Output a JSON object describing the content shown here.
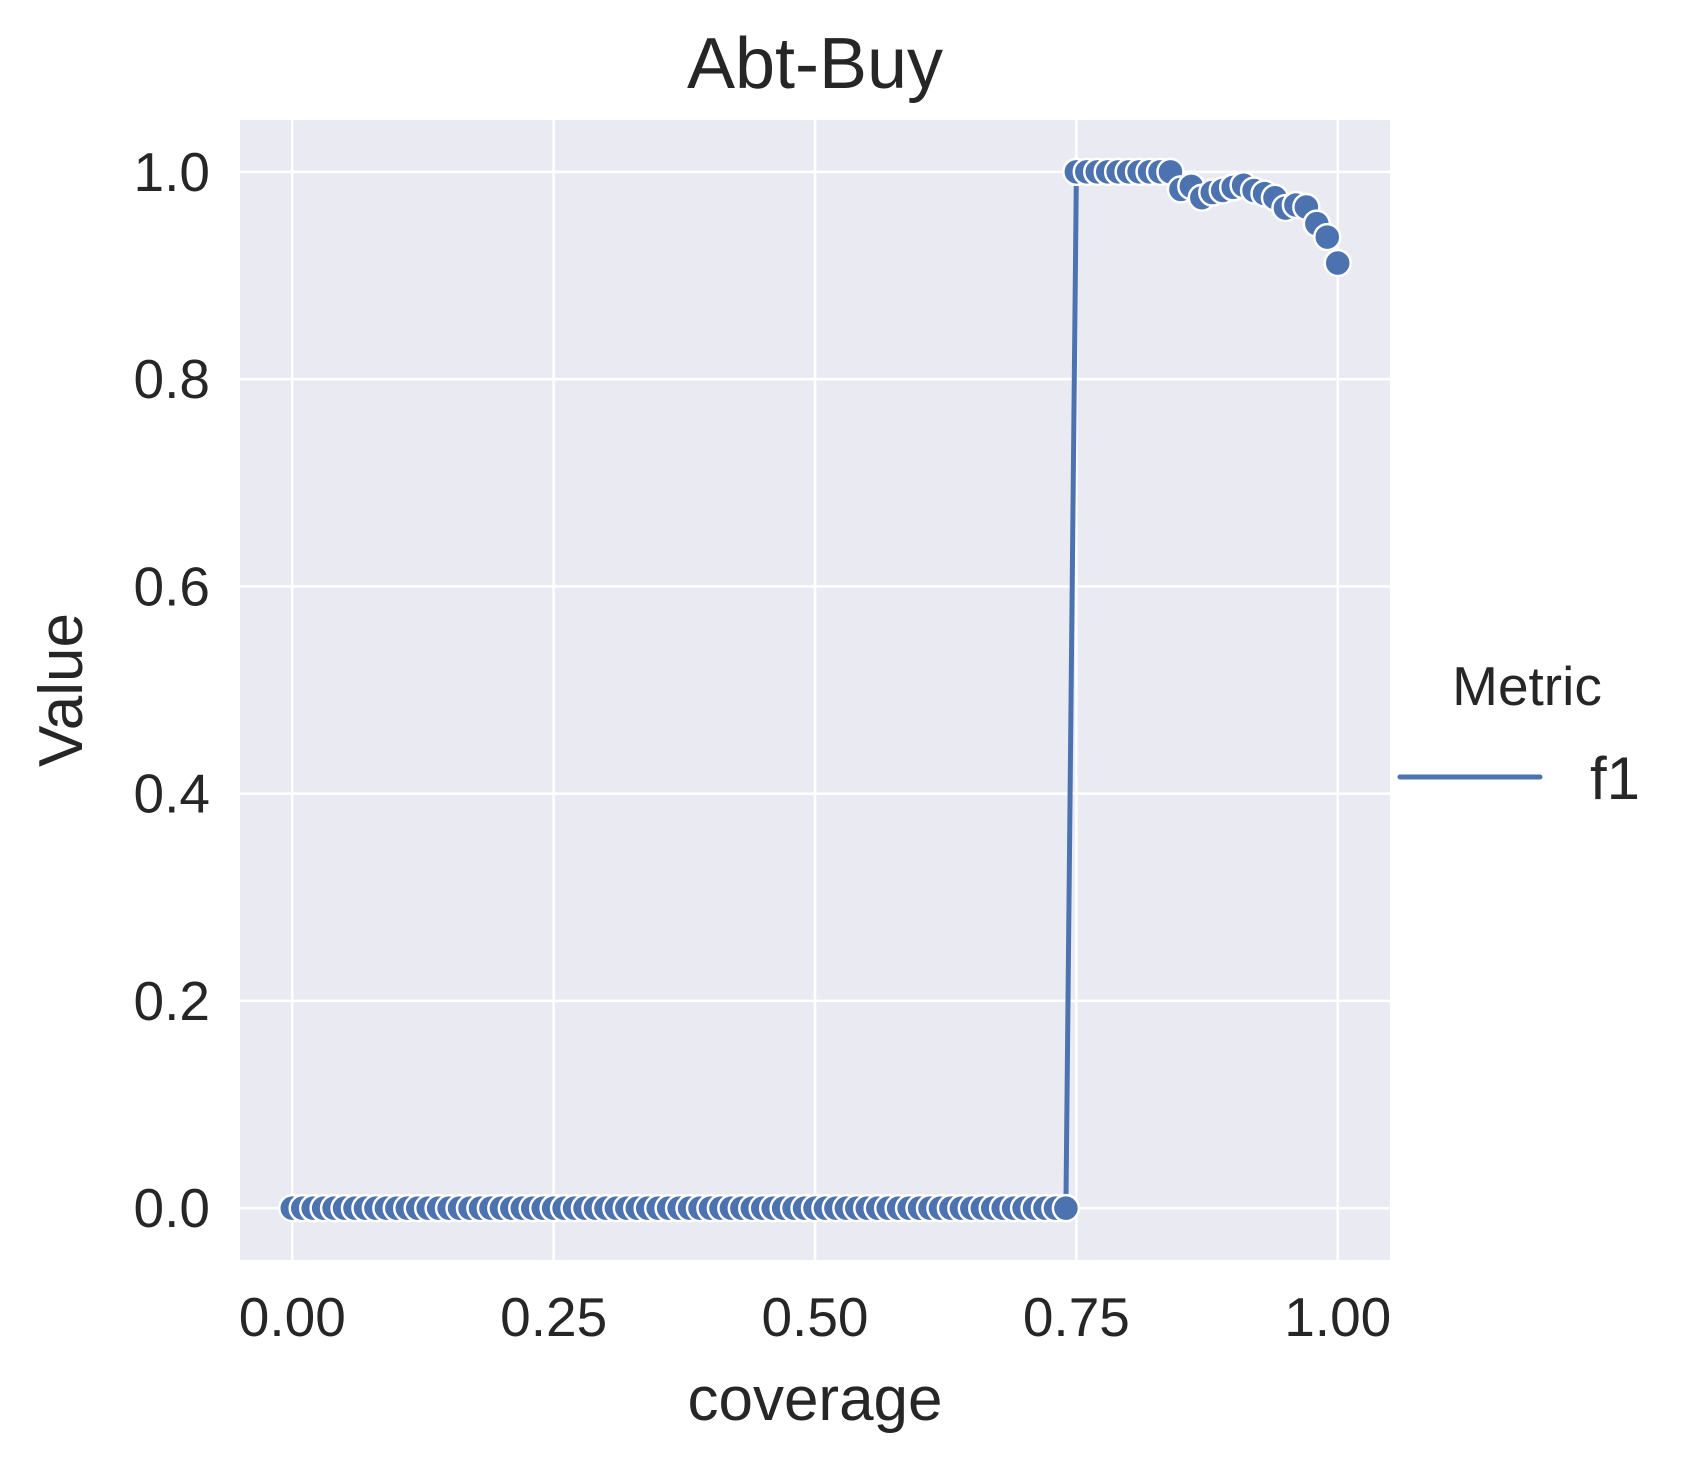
{
  "chart_data": {
    "type": "line",
    "title": "Abt-Buy",
    "xlabel": "coverage",
    "ylabel": "Value",
    "xlim": [
      -0.05,
      1.05
    ],
    "ylim": [
      -0.05,
      1.05
    ],
    "xticks": [
      0.0,
      0.25,
      0.5,
      0.75,
      1.0
    ],
    "xtick_labels": [
      "0.00",
      "0.25",
      "0.50",
      "0.75",
      "1.00"
    ],
    "yticks": [
      0.0,
      0.2,
      0.4,
      0.6,
      0.8,
      1.0
    ],
    "ytick_labels": [
      "0.0",
      "0.2",
      "0.4",
      "0.6",
      "0.8",
      "1.0"
    ],
    "grid": true,
    "legend": {
      "title": "Metric",
      "placement": "center-right-outside"
    },
    "series": [
      {
        "name": "f1",
        "color": "#4c72b0",
        "markers": true,
        "x": [
          0.0,
          0.01,
          0.02,
          0.03,
          0.04,
          0.05,
          0.06,
          0.07,
          0.08,
          0.09,
          0.1,
          0.11,
          0.12,
          0.13,
          0.14,
          0.15,
          0.16,
          0.17,
          0.18,
          0.19,
          0.2,
          0.21,
          0.22,
          0.23,
          0.24,
          0.25,
          0.26,
          0.27,
          0.28,
          0.29,
          0.3,
          0.31,
          0.32,
          0.33,
          0.34,
          0.35,
          0.36,
          0.37,
          0.38,
          0.39,
          0.4,
          0.41,
          0.42,
          0.43,
          0.44,
          0.45,
          0.46,
          0.47,
          0.48,
          0.49,
          0.5,
          0.51,
          0.52,
          0.53,
          0.54,
          0.55,
          0.56,
          0.57,
          0.58,
          0.59,
          0.6,
          0.61,
          0.62,
          0.63,
          0.64,
          0.65,
          0.66,
          0.67,
          0.68,
          0.69,
          0.7,
          0.71,
          0.72,
          0.73,
          0.74,
          0.75,
          0.76,
          0.77,
          0.78,
          0.79,
          0.8,
          0.81,
          0.82,
          0.83,
          0.84,
          0.85,
          0.86,
          0.87,
          0.88,
          0.89,
          0.9,
          0.91,
          0.92,
          0.93,
          0.94,
          0.95,
          0.96,
          0.97,
          0.98,
          0.99,
          1.0
        ],
        "values": [
          0,
          0,
          0,
          0,
          0,
          0,
          0,
          0,
          0,
          0,
          0,
          0,
          0,
          0,
          0,
          0,
          0,
          0,
          0,
          0,
          0,
          0,
          0,
          0,
          0,
          0,
          0,
          0,
          0,
          0,
          0,
          0,
          0,
          0,
          0,
          0,
          0,
          0,
          0,
          0,
          0,
          0,
          0,
          0,
          0,
          0,
          0,
          0,
          0,
          0,
          0,
          0,
          0,
          0,
          0,
          0,
          0,
          0,
          0,
          0,
          0,
          0,
          0,
          0,
          0,
          0,
          0,
          0,
          0,
          0,
          0,
          0,
          0,
          0,
          0,
          1.0,
          1.0,
          1.0,
          1.0,
          1.0,
          1.0,
          1.0,
          1.0,
          1.0,
          1.0,
          0.983,
          0.986,
          0.975,
          0.98,
          0.982,
          0.985,
          0.987,
          0.982,
          0.979,
          0.975,
          0.965,
          0.968,
          0.966,
          0.95,
          0.937,
          0.912
        ]
      }
    ]
  }
}
